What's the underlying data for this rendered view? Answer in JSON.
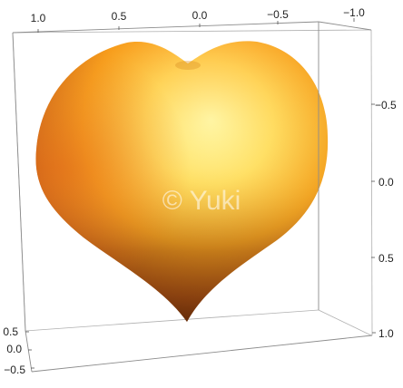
{
  "chart_data": {
    "type": "surface3d",
    "title": "",
    "description_visible": "Heart-shaped 3D surface plot with orange-yellow gradient shading inside a bounding box",
    "top_axis_ticks": [
      "1.0",
      "0.5",
      "0.0",
      "−0.5",
      "−1.0"
    ],
    "right_axis_ticks": [
      "−0.5",
      "0.0",
      "0.5",
      "1.0"
    ],
    "left_axis_ticks": [
      "0.5",
      "0.0",
      "−0.5"
    ],
    "x_range": [
      1.0,
      -1.0
    ],
    "y_range": [
      -0.5,
      1.0
    ],
    "z_range": [
      0.5,
      -0.5
    ],
    "grid": false,
    "colors": {
      "highlight": "#fffcb0",
      "light": "#ffe066",
      "mid": "#f5a623",
      "orange": "#ea7a14",
      "dark": "#6e2e08",
      "box": "#9a9a9a"
    }
  },
  "watermark": "© Yuki"
}
